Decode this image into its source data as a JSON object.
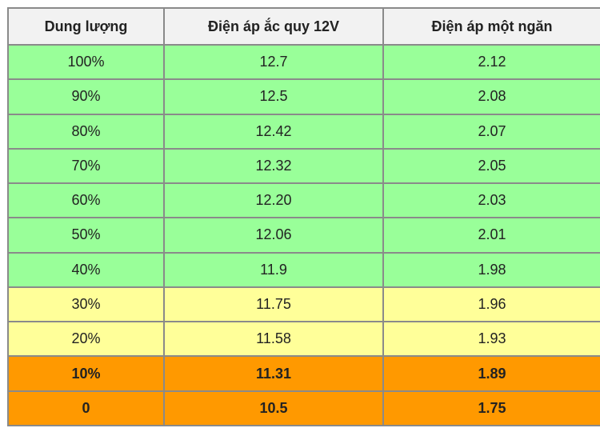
{
  "colors": {
    "header_bg": "#f2f2f2",
    "green": "#99ff99",
    "yellow": "#ffff99",
    "orange": "#ff9900",
    "border": "#8a8a8a"
  },
  "table": {
    "headers": [
      "Dung lượng",
      "Điện áp ắc quy 12V",
      "Điện áp một ngăn"
    ],
    "rows": [
      {
        "capacity": "100%",
        "battery_voltage": "12.7",
        "cell_voltage": "2.12",
        "band": "green"
      },
      {
        "capacity": "90%",
        "battery_voltage": "12.5",
        "cell_voltage": "2.08",
        "band": "green"
      },
      {
        "capacity": "80%",
        "battery_voltage": "12.42",
        "cell_voltage": "2.07",
        "band": "green"
      },
      {
        "capacity": "70%",
        "battery_voltage": "12.32",
        "cell_voltage": "2.05",
        "band": "green"
      },
      {
        "capacity": "60%",
        "battery_voltage": "12.20",
        "cell_voltage": "2.03",
        "band": "green"
      },
      {
        "capacity": "50%",
        "battery_voltage": "12.06",
        "cell_voltage": "2.01",
        "band": "green"
      },
      {
        "capacity": "40%",
        "battery_voltage": "11.9",
        "cell_voltage": "1.98",
        "band": "green"
      },
      {
        "capacity": "30%",
        "battery_voltage": "11.75",
        "cell_voltage": "1.96",
        "band": "yellow"
      },
      {
        "capacity": "20%",
        "battery_voltage": "11.58",
        "cell_voltage": "1.93",
        "band": "yellow"
      },
      {
        "capacity": "10%",
        "battery_voltage": "11.31",
        "cell_voltage": "1.89",
        "band": "orange"
      },
      {
        "capacity": "0",
        "battery_voltage": "10.5",
        "cell_voltage": "1.75",
        "band": "orange"
      }
    ]
  }
}
